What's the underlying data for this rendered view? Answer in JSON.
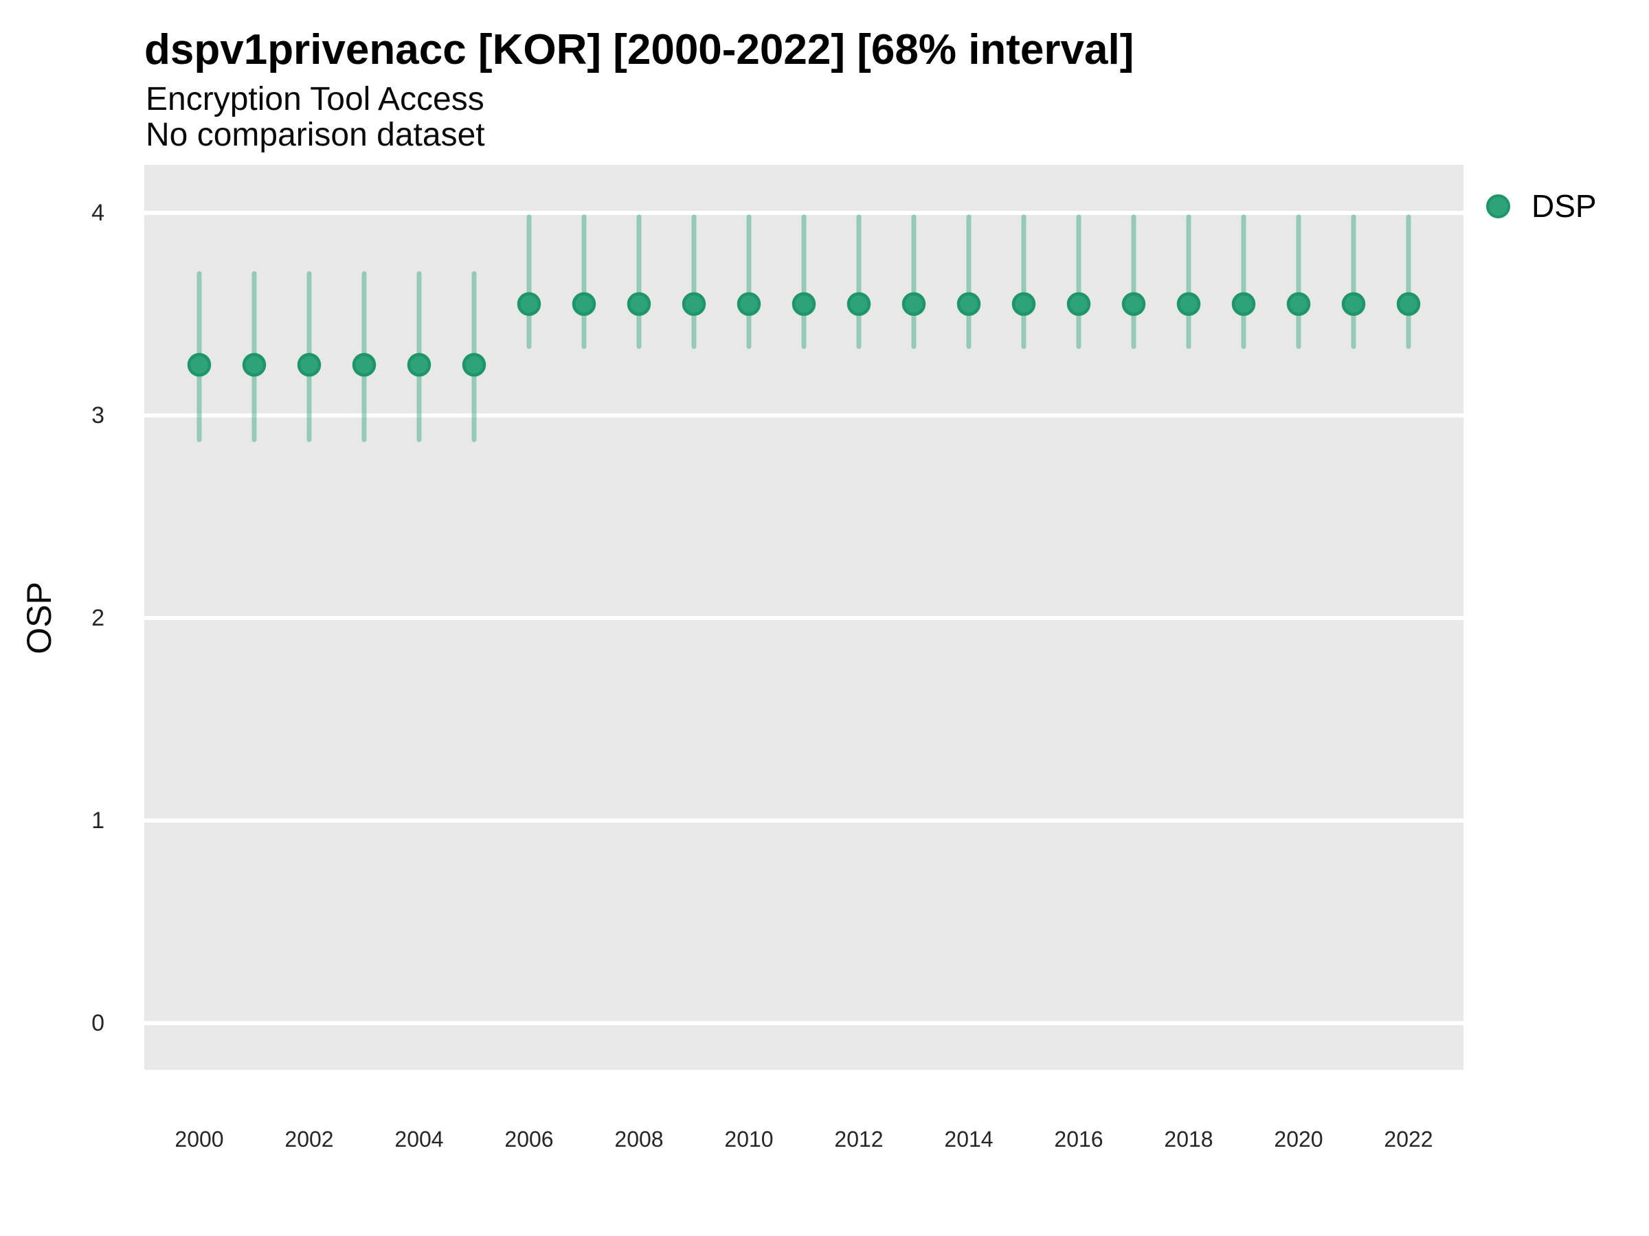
{
  "header": {
    "title": "dspv1privenacc [KOR] [2000-2022] [68% interval]",
    "subtitle": "Encryption Tool Access",
    "note": "No comparison dataset"
  },
  "chart_data": {
    "type": "scatter",
    "subtype": "pointrange",
    "title": "dspv1privenacc [KOR] [2000-2022] [68% interval]",
    "subtitle": "Encryption Tool Access",
    "note": "No comparison dataset",
    "xlabel": "",
    "ylabel": "OSP",
    "ylim": [
      -0.24,
      4.24
    ],
    "xlim": [
      1999,
      2023
    ],
    "grid": "horizontal-white-on-gray",
    "legend_position": "right-top",
    "legend": {
      "label": "DSP"
    },
    "y_ticks": [
      0,
      1,
      2,
      3,
      4
    ],
    "x_ticks": [
      2000,
      2002,
      2004,
      2006,
      2008,
      2010,
      2012,
      2014,
      2016,
      2018,
      2020,
      2022
    ],
    "series": [
      {
        "name": "DSP",
        "points": [
          {
            "year": 2000,
            "est": 3.25,
            "lo": 2.88,
            "hi": 3.7
          },
          {
            "year": 2001,
            "est": 3.25,
            "lo": 2.88,
            "hi": 3.7
          },
          {
            "year": 2002,
            "est": 3.25,
            "lo": 2.88,
            "hi": 3.7
          },
          {
            "year": 2003,
            "est": 3.25,
            "lo": 2.88,
            "hi": 3.7
          },
          {
            "year": 2004,
            "est": 3.25,
            "lo": 2.88,
            "hi": 3.7
          },
          {
            "year": 2005,
            "est": 3.25,
            "lo": 2.88,
            "hi": 3.7
          },
          {
            "year": 2006,
            "est": 3.55,
            "lo": 3.34,
            "hi": 3.98
          },
          {
            "year": 2007,
            "est": 3.55,
            "lo": 3.34,
            "hi": 3.98
          },
          {
            "year": 2008,
            "est": 3.55,
            "lo": 3.34,
            "hi": 3.98
          },
          {
            "year": 2009,
            "est": 3.55,
            "lo": 3.34,
            "hi": 3.98
          },
          {
            "year": 2010,
            "est": 3.55,
            "lo": 3.34,
            "hi": 3.98
          },
          {
            "year": 2011,
            "est": 3.55,
            "lo": 3.34,
            "hi": 3.98
          },
          {
            "year": 2012,
            "est": 3.55,
            "lo": 3.34,
            "hi": 3.98
          },
          {
            "year": 2013,
            "est": 3.55,
            "lo": 3.34,
            "hi": 3.98
          },
          {
            "year": 2014,
            "est": 3.55,
            "lo": 3.34,
            "hi": 3.98
          },
          {
            "year": 2015,
            "est": 3.55,
            "lo": 3.34,
            "hi": 3.98
          },
          {
            "year": 2016,
            "est": 3.55,
            "lo": 3.34,
            "hi": 3.98
          },
          {
            "year": 2017,
            "est": 3.55,
            "lo": 3.34,
            "hi": 3.98
          },
          {
            "year": 2018,
            "est": 3.55,
            "lo": 3.34,
            "hi": 3.98
          },
          {
            "year": 2019,
            "est": 3.55,
            "lo": 3.34,
            "hi": 3.98
          },
          {
            "year": 2020,
            "est": 3.55,
            "lo": 3.34,
            "hi": 3.98
          },
          {
            "year": 2021,
            "est": 3.55,
            "lo": 3.34,
            "hi": 3.98
          },
          {
            "year": 2022,
            "est": 3.55,
            "lo": 3.34,
            "hi": 3.98
          }
        ]
      }
    ],
    "colors": {
      "point_fill": "#2DA377",
      "point_stroke": "#1E9669",
      "interval": "rgba(44,163,119,0.44)",
      "panel_bg": "#E8E8E8",
      "gridline": "#FFFFFF"
    }
  }
}
